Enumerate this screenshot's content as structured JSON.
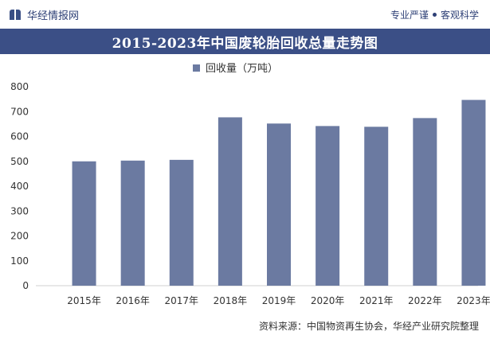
{
  "header": {
    "brand_name": "华经情报网",
    "slogan_left": "专业严谨",
    "slogan_right": "客观科学"
  },
  "colors": {
    "bar": "#6b7aa1",
    "title_band": "#3b4f86",
    "axis_text": "#333333"
  },
  "chart_data": {
    "type": "bar",
    "title": "2015-2023年中国废轮胎回收总量走势图",
    "legend": "回收量（万吨）",
    "legend_position": "top-center",
    "categories": [
      "2015年",
      "2016年",
      "2017年",
      "2018年",
      "2019年",
      "2020年",
      "2021年",
      "2022年",
      "2023年"
    ],
    "series": [
      {
        "name": "回收量（万吨）",
        "values": [
          500,
          503,
          506,
          677,
          652,
          642,
          639,
          674,
          747
        ]
      }
    ],
    "ylim": [
      0,
      800
    ],
    "yticks": [
      0,
      100,
      200,
      300,
      400,
      500,
      600,
      700,
      800
    ],
    "xlabel": "",
    "ylabel": "",
    "grid": false
  },
  "footer": {
    "source": "资料来源：中国物资再生协会，华经产业研究院整理"
  }
}
